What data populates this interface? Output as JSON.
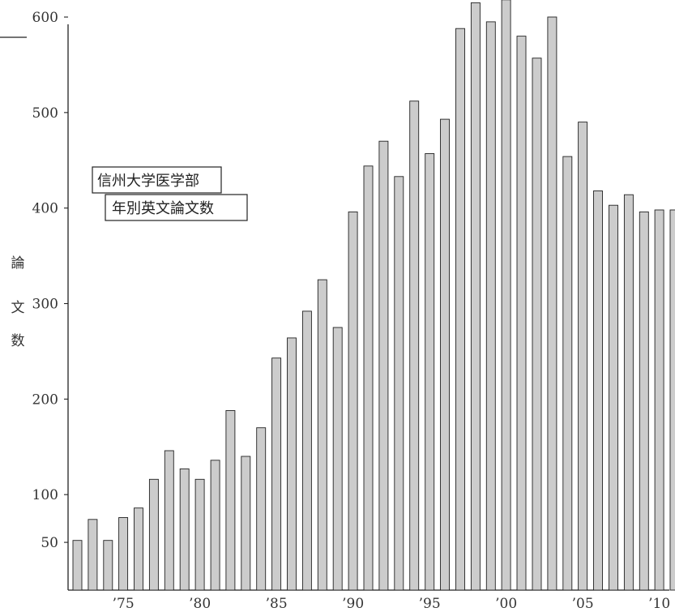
{
  "chart_data": {
    "type": "bar",
    "title_lines": [
      "信州大学医学部",
      "年別英文論文数"
    ],
    "ylabel_chars": [
      "論",
      "文",
      "数"
    ],
    "ylim": [
      0,
      617
    ],
    "yticks": [
      50,
      100,
      200,
      300,
      400,
      500,
      600
    ],
    "xtick_labels": [
      {
        "year": 1975,
        "label": "’75"
      },
      {
        "year": 1980,
        "label": "’80"
      },
      {
        "year": 1985,
        "label": "’85"
      },
      {
        "year": 1990,
        "label": "’90"
      },
      {
        "year": 1995,
        "label": "’95"
      },
      {
        "year": 2000,
        "label": "’00"
      },
      {
        "year": 2005,
        "label": "’05"
      },
      {
        "year": 2010,
        "label": "’10"
      }
    ],
    "x": [
      1972,
      1973,
      1974,
      1975,
      1976,
      1977,
      1978,
      1979,
      1980,
      1981,
      1982,
      1983,
      1984,
      1985,
      1986,
      1987,
      1988,
      1989,
      1990,
      1991,
      1992,
      1993,
      1994,
      1995,
      1996,
      1997,
      1998,
      1999,
      2000,
      2001,
      2002,
      2003,
      2004,
      2005,
      2006,
      2007,
      2008,
      2009,
      2010,
      2011
    ],
    "values": [
      52,
      74,
      52,
      76,
      86,
      116,
      146,
      127,
      116,
      136,
      188,
      140,
      170,
      243,
      264,
      292,
      325,
      275,
      396,
      444,
      470,
      433,
      512,
      457,
      493,
      588,
      615,
      595,
      618,
      580,
      557,
      600,
      454,
      490,
      418,
      403,
      414,
      396,
      398,
      398
    ],
    "bar_fill": "#cccccc",
    "bar_stroke": "#222222",
    "grid": false
  }
}
